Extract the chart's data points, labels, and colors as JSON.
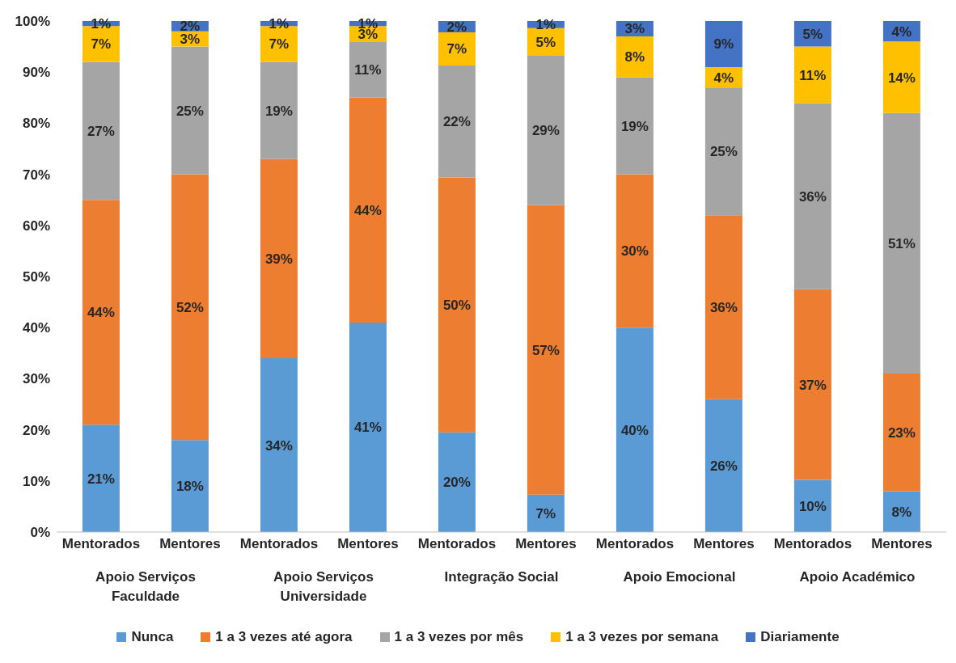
{
  "chart_data": {
    "type": "bar",
    "stacked": true,
    "categories": [
      "Mentorados",
      "Mentores",
      "Mentorados",
      "Mentores",
      "Mentorados",
      "Mentores",
      "Mentorados",
      "Mentores",
      "Mentorados",
      "Mentores"
    ],
    "annotations": [
      "Apoio  Serviços Faculdade",
      "Apoio Serviços Universidade",
      "Integração Social",
      "Apoio Emocional",
      "Apoio Académico"
    ],
    "series": [
      {
        "name": "Nunca",
        "color": "#5b9bd5",
        "values": [
          21,
          18,
          34,
          41,
          19.5,
          7.3,
          40,
          26,
          10.2,
          8
        ],
        "value_labels": [
          "21%",
          "18%",
          "34%",
          "41%",
          "20%",
          "7%",
          "40%",
          "26%",
          "10%",
          "8%"
        ]
      },
      {
        "name": "1 a 3 vezes até agora",
        "color": "#ed7d31",
        "values": [
          44,
          52,
          39,
          44,
          49.9,
          56.7,
          30,
          36,
          37.3,
          23
        ],
        "value_labels": [
          "44%",
          "52%",
          "39%",
          "44%",
          "50%",
          "57%",
          "30%",
          "36%",
          "37%",
          "23%"
        ]
      },
      {
        "name": "1 a 3 vezes por mês",
        "color": "#a5a5a5",
        "values": [
          27,
          25,
          19,
          11,
          21.9,
          29.2,
          19,
          25,
          36.4,
          51
        ],
        "value_labels": [
          "27%",
          "25%",
          "19%",
          "11%",
          "22%",
          "29%",
          "19%",
          "25%",
          "36%",
          "51%"
        ]
      },
      {
        "name": "1 a 3 vezes por semana",
        "color": "#ffc000",
        "values": [
          7,
          3,
          7,
          3,
          6.5,
          5.4,
          8,
          4,
          11.1,
          14
        ],
        "value_labels": [
          "7%",
          "3%",
          "7%",
          "3%",
          "7%",
          "5%",
          "8%",
          "4%",
          "11%",
          "14%"
        ]
      },
      {
        "name": "Diariamente",
        "color": "#4472c4",
        "values": [
          1,
          2,
          1,
          1,
          2.2,
          1.4,
          3,
          9,
          5,
          4
        ],
        "value_labels": [
          "1%",
          "2%",
          "1%",
          "1%",
          "2%",
          "1%",
          "3%",
          "9%",
          "5%",
          "4%"
        ]
      }
    ],
    "ylim": [
      0,
      100
    ],
    "yticks": [
      {
        "value": 0,
        "label": "0%"
      },
      {
        "value": 10,
        "label": "10%"
      },
      {
        "value": 20,
        "label": "20%"
      },
      {
        "value": 30,
        "label": "30%"
      },
      {
        "value": 40,
        "label": "40%"
      },
      {
        "value": 50,
        "label": "50%"
      },
      {
        "value": 60,
        "label": "60%"
      },
      {
        "value": 70,
        "label": "70%"
      },
      {
        "value": 80,
        "label": "80%"
      },
      {
        "value": 90,
        "label": "90%"
      },
      {
        "value": 100,
        "label": "100%"
      }
    ],
    "legend": "bottom"
  }
}
